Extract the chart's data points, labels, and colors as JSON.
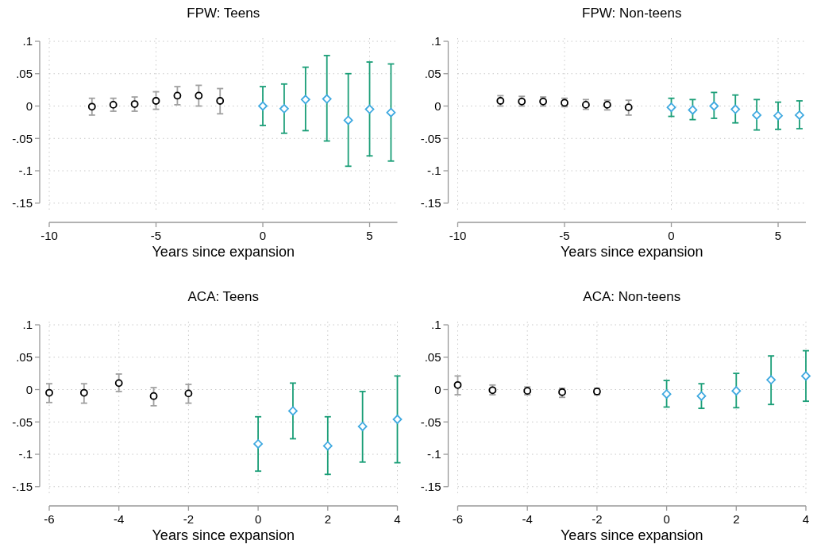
{
  "chart_data": [
    {
      "type": "scatter",
      "title": "FPW: Teens",
      "xlabel": "Years since expansion",
      "xlim": [
        -10,
        6.3
      ],
      "xticks": [
        -10,
        -5,
        0,
        5
      ],
      "ylim": [
        -0.165,
        0.1
      ],
      "yticks": [
        {
          "value": 0.1,
          "label": ".1"
        },
        {
          "value": 0.05,
          "label": ".05"
        },
        {
          "value": 0,
          "label": "0"
        },
        {
          "value": -0.05,
          "label": "-.05"
        },
        {
          "value": -0.1,
          "label": "-.1"
        },
        {
          "value": -0.15,
          "label": "-.15"
        }
      ],
      "grid": true,
      "series": [
        {
          "color": "#000000",
          "marker": "circle",
          "x": [
            -8,
            -7,
            -6,
            -5,
            -4,
            -3,
            -2
          ],
          "values": [
            -0.001,
            0.002,
            0.003,
            0.008,
            0.016,
            0.016,
            0.008
          ],
          "errors": [
            [
              -0.014,
              0.012
            ],
            [
              -0.008,
              0.012
            ],
            [
              -0.008,
              0.014
            ],
            [
              -0.005,
              0.022
            ],
            [
              0.002,
              0.03
            ],
            [
              0,
              0.032
            ],
            [
              -0.012,
              0.027
            ]
          ]
        },
        {
          "color": "#3fa9e0",
          "marker": "diamond",
          "x": [
            0,
            1,
            2,
            3,
            4,
            5,
            6
          ],
          "values": [
            0,
            -0.004,
            0.01,
            0.011,
            -0.022,
            -0.005,
            -0.01
          ],
          "errors": [
            [
              -0.03,
              0.03
            ],
            [
              -0.042,
              0.034
            ],
            [
              -0.038,
              0.06
            ],
            [
              -0.054,
              0.078
            ],
            [
              -0.093,
              0.05
            ],
            [
              -0.077,
              0.068
            ],
            [
              -0.085,
              0.065
            ]
          ]
        }
      ]
    },
    {
      "type": "scatter",
      "title": "FPW: Non-teens",
      "xlabel": "Years since expansion",
      "xlim": [
        -10,
        6.3
      ],
      "xticks": [
        -10,
        -5,
        0,
        5
      ],
      "ylim": [
        -0.165,
        0.1
      ],
      "yticks": [
        {
          "value": 0.1,
          "label": ".1"
        },
        {
          "value": 0.05,
          "label": ".05"
        },
        {
          "value": 0,
          "label": "0"
        },
        {
          "value": -0.05,
          "label": "-.05"
        },
        {
          "value": -0.1,
          "label": "-.1"
        },
        {
          "value": -0.15,
          "label": "-.15"
        }
      ],
      "grid": true,
      "series": [
        {
          "color": "#000000",
          "marker": "circle",
          "x": [
            -8,
            -7,
            -6,
            -5,
            -4,
            -3,
            -2
          ],
          "values": [
            0.008,
            0.007,
            0.007,
            0.005,
            0.002,
            0.002,
            -0.002
          ],
          "errors": [
            [
              0,
              0.016
            ],
            [
              0,
              0.015
            ],
            [
              0,
              0.014
            ],
            [
              -0.001,
              0.012
            ],
            [
              -0.005,
              0.01
            ],
            [
              -0.006,
              0.009
            ],
            [
              -0.014,
              0.009
            ]
          ]
        },
        {
          "color": "#3fa9e0",
          "marker": "diamond",
          "x": [
            0,
            1,
            2,
            3,
            4,
            5,
            6
          ],
          "values": [
            -0.002,
            -0.006,
            0,
            -0.005,
            -0.014,
            -0.015,
            -0.014
          ],
          "errors": [
            [
              -0.016,
              0.012
            ],
            [
              -0.021,
              0.01
            ],
            [
              -0.019,
              0.021
            ],
            [
              -0.026,
              0.017
            ],
            [
              -0.037,
              0.01
            ],
            [
              -0.036,
              0.006
            ],
            [
              -0.035,
              0.008
            ]
          ]
        }
      ]
    },
    {
      "type": "scatter",
      "title": "ACA: Teens",
      "xlabel": "Years since expansion",
      "xlim": [
        -6,
        4
      ],
      "xticks": [
        -6,
        -4,
        -2,
        0,
        2,
        4
      ],
      "ylim": [
        -0.165,
        0.1
      ],
      "yticks": [
        {
          "value": 0.1,
          "label": ".1"
        },
        {
          "value": 0.05,
          "label": ".05"
        },
        {
          "value": 0,
          "label": "0"
        },
        {
          "value": -0.05,
          "label": "-.05"
        },
        {
          "value": -0.1,
          "label": "-.1"
        },
        {
          "value": -0.15,
          "label": "-.15"
        }
      ],
      "grid": true,
      "series": [
        {
          "color": "#000000",
          "marker": "circle",
          "x": [
            -6,
            -5,
            -4,
            -3,
            -2
          ],
          "values": [
            -0.005,
            -0.005,
            0.01,
            -0.01,
            -0.006
          ],
          "errors": [
            [
              -0.02,
              0.009
            ],
            [
              -0.021,
              0.009
            ],
            [
              -0.003,
              0.024
            ],
            [
              -0.025,
              0.003
            ],
            [
              -0.021,
              0.008
            ]
          ]
        },
        {
          "color": "#3fa9e0",
          "marker": "diamond",
          "x": [
            0,
            1,
            2,
            3,
            4
          ],
          "values": [
            -0.084,
            -0.033,
            -0.087,
            -0.057,
            -0.046
          ],
          "errors": [
            [
              -0.126,
              -0.042
            ],
            [
              -0.076,
              0.01
            ],
            [
              -0.131,
              -0.042
            ],
            [
              -0.112,
              -0.003
            ],
            [
              -0.113,
              0.021
            ]
          ]
        }
      ]
    },
    {
      "type": "scatter",
      "title": "ACA: Non-teens",
      "xlabel": "Years since expansion",
      "xlim": [
        -6,
        4
      ],
      "xticks": [
        -6,
        -4,
        -2,
        0,
        2,
        4
      ],
      "ylim": [
        -0.165,
        0.1
      ],
      "yticks": [
        {
          "value": 0.1,
          "label": ".1"
        },
        {
          "value": 0.05,
          "label": ".05"
        },
        {
          "value": 0,
          "label": "0"
        },
        {
          "value": -0.05,
          "label": "-.05"
        },
        {
          "value": -0.1,
          "label": "-.1"
        },
        {
          "value": -0.15,
          "label": "-.15"
        }
      ],
      "grid": true,
      "series": [
        {
          "color": "#000000",
          "marker": "circle",
          "x": [
            -6,
            -5,
            -4,
            -3,
            -2
          ],
          "values": [
            0.007,
            -0.001,
            -0.002,
            -0.004,
            -0.003
          ],
          "errors": [
            [
              -0.008,
              0.021
            ],
            [
              -0.008,
              0.007
            ],
            [
              -0.008,
              0.004
            ],
            [
              -0.012,
              0.002
            ],
            [
              -0.008,
              0.002
            ]
          ]
        },
        {
          "color": "#3fa9e0",
          "marker": "diamond",
          "x": [
            0,
            1,
            2,
            3,
            4
          ],
          "values": [
            -0.007,
            -0.01,
            -0.002,
            0.015,
            0.021
          ],
          "errors": [
            [
              -0.027,
              0.014
            ],
            [
              -0.029,
              0.009
            ],
            [
              -0.028,
              0.025
            ],
            [
              -0.023,
              0.052
            ],
            [
              -0.018,
              0.06
            ]
          ]
        }
      ]
    }
  ]
}
